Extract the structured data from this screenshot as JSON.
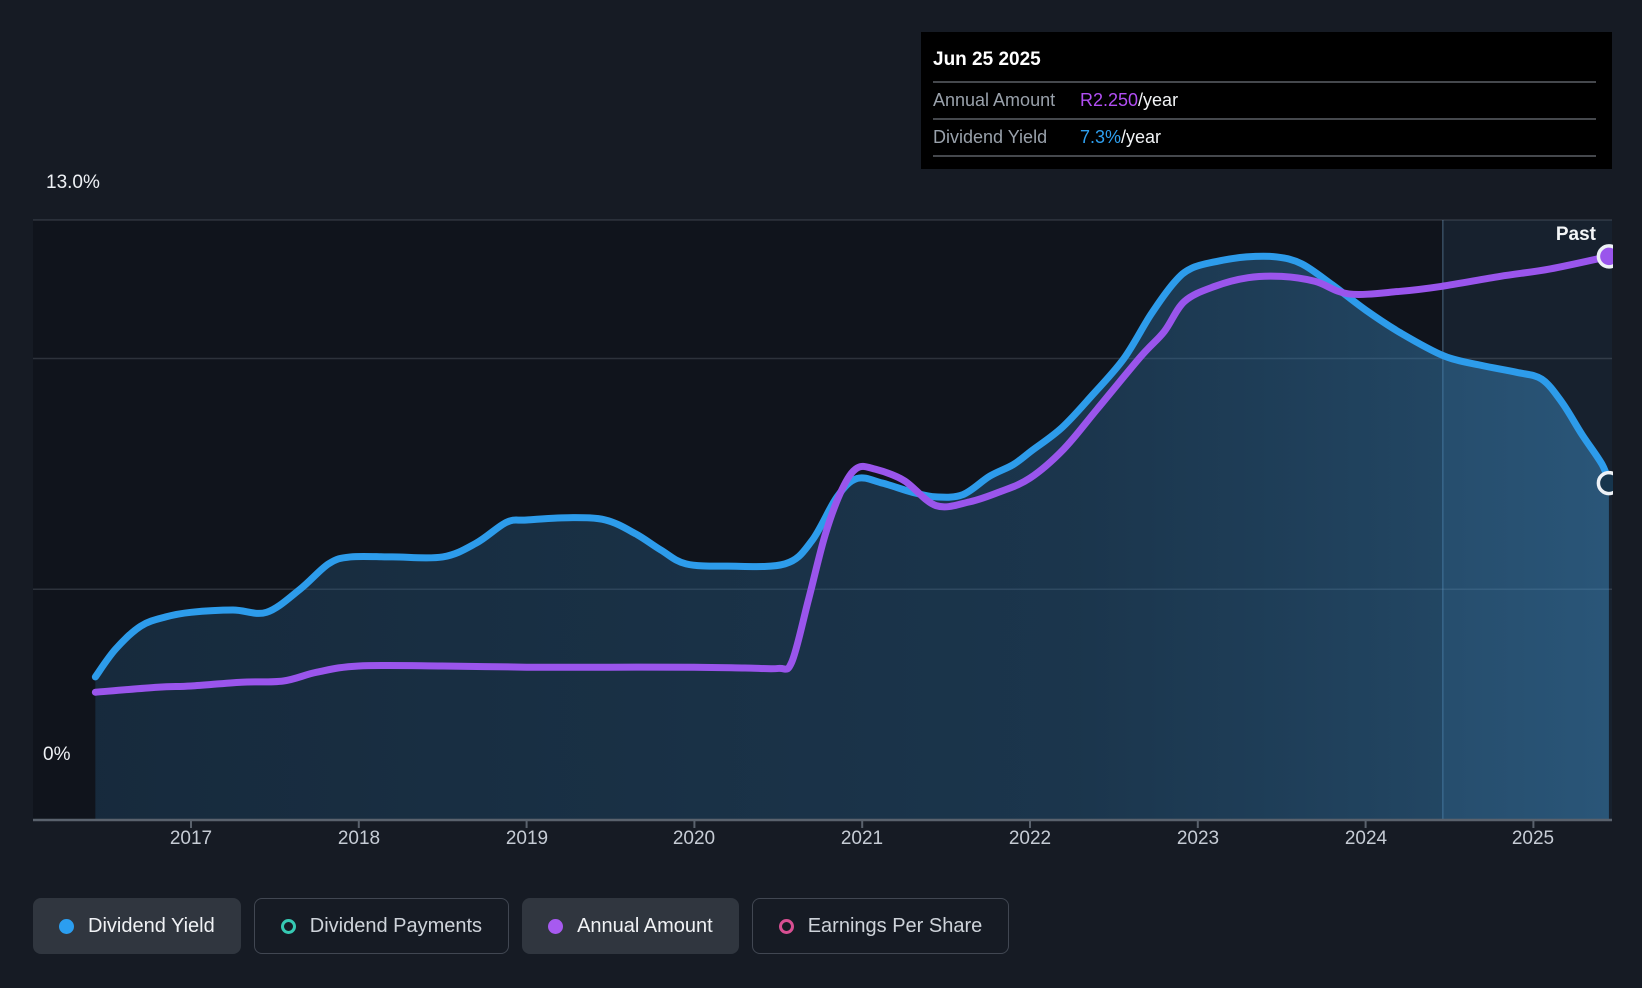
{
  "tooltip": {
    "date": "Jun 25 2025",
    "rows": [
      {
        "label": "Annual Amount",
        "value": "R2.250",
        "unit": "/year",
        "color": "#b14ef3"
      },
      {
        "label": "Dividend Yield",
        "value": "7.3%",
        "unit": "/year",
        "color": "#2e9fee"
      }
    ]
  },
  "axes": {
    "y_top_label": "13.0%",
    "y_zero_label": "0%",
    "past_label": "Past",
    "years": [
      "2017",
      "2018",
      "2019",
      "2020",
      "2021",
      "2022",
      "2023",
      "2024",
      "2025"
    ]
  },
  "legend": [
    {
      "label": "Dividend Yield",
      "marker": "dot",
      "color": "#2b9ef0",
      "active": true
    },
    {
      "label": "Dividend Payments",
      "marker": "ring",
      "color": "#36c9b3",
      "active": false
    },
    {
      "label": "Annual Amount",
      "marker": "dot",
      "color": "#a75af0",
      "active": true
    },
    {
      "label": "Earnings Per Share",
      "marker": "ring",
      "color": "#d84f92",
      "active": false
    }
  ],
  "colors": {
    "background": "#161b24",
    "blue_line": "#2d9ceb",
    "purple_line": "#9a55ec",
    "grid": "rgba(148,160,175,0.22)",
    "axis": "#5a626d",
    "tooltip_bg": "#000000"
  },
  "chart_data": {
    "type": "line",
    "x_axis": {
      "ticks": [
        2017,
        2018,
        2019,
        2020,
        2021,
        2022,
        2023,
        2024,
        2025
      ],
      "range": [
        2016.43,
        2025.48
      ]
    },
    "y_axis": {
      "label_top": "13.0%",
      "label_bottom": "0%",
      "range_pct": [
        0,
        13
      ],
      "gridlines_pct": [
        13,
        10,
        5
      ]
    },
    "past_divider_year": 2024.46,
    "legend_position": "bottom",
    "series": [
      {
        "name": "Dividend Yield",
        "unit": "%",
        "color": "#2d9ceb",
        "end_value_label": "7.3%/year",
        "points": [
          [
            2016.43,
            3.1
          ],
          [
            2016.55,
            3.7
          ],
          [
            2016.7,
            4.2
          ],
          [
            2016.85,
            4.4
          ],
          [
            2017.0,
            4.5
          ],
          [
            2017.25,
            4.55
          ],
          [
            2017.45,
            4.5
          ],
          [
            2017.65,
            5.0
          ],
          [
            2017.82,
            5.55
          ],
          [
            2017.95,
            5.7
          ],
          [
            2018.2,
            5.7
          ],
          [
            2018.5,
            5.7
          ],
          [
            2018.7,
            6.0
          ],
          [
            2018.88,
            6.45
          ],
          [
            2019.0,
            6.5
          ],
          [
            2019.25,
            6.55
          ],
          [
            2019.47,
            6.5
          ],
          [
            2019.65,
            6.2
          ],
          [
            2019.8,
            5.85
          ],
          [
            2019.95,
            5.55
          ],
          [
            2020.2,
            5.5
          ],
          [
            2020.54,
            5.55
          ],
          [
            2020.7,
            6.05
          ],
          [
            2020.85,
            7.0
          ],
          [
            2020.97,
            7.4
          ],
          [
            2021.12,
            7.3
          ],
          [
            2021.3,
            7.1
          ],
          [
            2021.44,
            7.0
          ],
          [
            2021.6,
            7.05
          ],
          [
            2021.76,
            7.45
          ],
          [
            2021.9,
            7.7
          ],
          [
            2022.01,
            8.0
          ],
          [
            2022.19,
            8.5
          ],
          [
            2022.37,
            9.2
          ],
          [
            2022.56,
            10.0
          ],
          [
            2022.72,
            10.95
          ],
          [
            2022.86,
            11.65
          ],
          [
            2022.96,
            11.95
          ],
          [
            2023.11,
            12.1
          ],
          [
            2023.29,
            12.2
          ],
          [
            2023.47,
            12.2
          ],
          [
            2023.62,
            12.05
          ],
          [
            2023.8,
            11.6
          ],
          [
            2024.0,
            11.05
          ],
          [
            2024.21,
            10.55
          ],
          [
            2024.47,
            10.05
          ],
          [
            2024.69,
            9.85
          ],
          [
            2024.9,
            9.7
          ],
          [
            2025.05,
            9.55
          ],
          [
            2025.17,
            9.05
          ],
          [
            2025.29,
            8.35
          ],
          [
            2025.41,
            7.7
          ],
          [
            2025.45,
            7.3
          ]
        ]
      },
      {
        "name": "Annual Amount",
        "unit": "R",
        "color": "#9a55ec",
        "end_value_label": "R2.250/year",
        "points": [
          [
            2016.43,
            0.51
          ],
          [
            2016.8,
            0.53
          ],
          [
            2017.0,
            0.535
          ],
          [
            2017.3,
            0.55
          ],
          [
            2017.55,
            0.555
          ],
          [
            2017.75,
            0.59
          ],
          [
            2018.0,
            0.615
          ],
          [
            2018.5,
            0.615
          ],
          [
            2019.0,
            0.61
          ],
          [
            2019.5,
            0.61
          ],
          [
            2020.0,
            0.61
          ],
          [
            2020.3,
            0.607
          ],
          [
            2020.5,
            0.605
          ],
          [
            2020.58,
            0.63
          ],
          [
            2020.68,
            0.88
          ],
          [
            2020.78,
            1.14
          ],
          [
            2020.88,
            1.32
          ],
          [
            2020.97,
            1.405
          ],
          [
            2021.08,
            1.4
          ],
          [
            2021.25,
            1.355
          ],
          [
            2021.44,
            1.255
          ],
          [
            2021.64,
            1.27
          ],
          [
            2021.82,
            1.31
          ],
          [
            2022.0,
            1.365
          ],
          [
            2022.2,
            1.48
          ],
          [
            2022.4,
            1.64
          ],
          [
            2022.66,
            1.85
          ],
          [
            2022.8,
            1.95
          ],
          [
            2022.92,
            2.07
          ],
          [
            2023.1,
            2.13
          ],
          [
            2023.3,
            2.165
          ],
          [
            2023.5,
            2.17
          ],
          [
            2023.7,
            2.15
          ],
          [
            2023.9,
            2.1
          ],
          [
            2024.2,
            2.11
          ],
          [
            2024.45,
            2.13
          ],
          [
            2024.8,
            2.17
          ],
          [
            2025.1,
            2.2
          ],
          [
            2025.45,
            2.25
          ]
        ]
      }
    ]
  }
}
